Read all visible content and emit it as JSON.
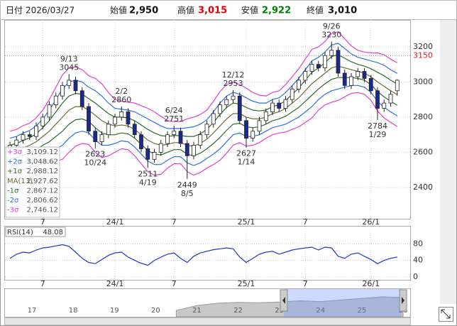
{
  "chart_data": {
    "type": "candlestick",
    "header": {
      "date_label": "日付",
      "date": "2026/03/27",
      "open_label": "始値",
      "open": "2,950",
      "high_label": "高値",
      "high": "3,015",
      "low_label": "安値",
      "low": "2,922",
      "close_label": "終値",
      "close": "3,010"
    },
    "categories": [
      null,
      null,
      null,
      null,
      null,
      "7",
      null,
      null,
      null,
      null,
      null,
      null,
      null,
      null,
      null,
      null,
      "24/1",
      null,
      null,
      null,
      null,
      null,
      null,
      null,
      null,
      "7",
      null,
      null,
      null,
      null,
      null,
      null,
      null,
      null,
      null,
      null,
      "25/1",
      null,
      null,
      null,
      null,
      null,
      null,
      null,
      null,
      "7",
      null,
      null,
      null,
      null,
      null,
      null,
      null,
      null,
      null,
      "26/1",
      null,
      null,
      null,
      null
    ],
    "ylim": [
      2222,
      3353
    ],
    "yticks": [
      2400,
      2600,
      2800,
      3000,
      3200
    ],
    "grid": true,
    "reference_line": {
      "value": 3150,
      "color": "#e02020"
    },
    "up_color": "#ffffff",
    "down_color": "#1a2a8a",
    "open": [
      2620,
      2640,
      2670,
      2700,
      2690,
      2750,
      2800,
      2870,
      2920,
      2980,
      3010,
      2950,
      2860,
      2720,
      2660,
      2700,
      2760,
      2800,
      2830,
      2760,
      2700,
      2620,
      2560,
      2600,
      2650,
      2700,
      2720,
      2650,
      2580,
      2640,
      2700,
      2760,
      2820,
      2870,
      2900,
      2920,
      2780,
      2680,
      2720,
      2780,
      2830,
      2880,
      2850,
      2900,
      2960,
      3010,
      3060,
      3100,
      3080,
      3150,
      3180,
      3050,
      2980,
      3030,
      3060,
      3020,
      2950,
      2850,
      2880,
      2950
    ],
    "high": [
      2660,
      2690,
      2720,
      2720,
      2770,
      2820,
      2890,
      2940,
      3000,
      3045,
      3030,
      2970,
      2880,
      2740,
      2720,
      2780,
      2820,
      2860,
      2850,
      2780,
      2720,
      2640,
      2620,
      2670,
      2720,
      2751,
      2740,
      2670,
      2660,
      2720,
      2780,
      2840,
      2890,
      2920,
      2953,
      2940,
      2800,
      2740,
      2800,
      2850,
      2900,
      2900,
      2920,
      2980,
      3030,
      3080,
      3120,
      3120,
      3170,
      3230,
      3200,
      3070,
      3050,
      3080,
      3080,
      3040,
      2970,
      2900,
      2950,
      3015
    ],
    "low": [
      2600,
      2620,
      2650,
      2670,
      2670,
      2730,
      2780,
      2850,
      2900,
      2960,
      2930,
      2840,
      2700,
      2623,
      2640,
      2680,
      2740,
      2780,
      2740,
      2680,
      2600,
      2511,
      2540,
      2580,
      2630,
      2680,
      2630,
      2449,
      2560,
      2620,
      2680,
      2740,
      2800,
      2850,
      2880,
      2760,
      2627,
      2660,
      2700,
      2760,
      2810,
      2830,
      2830,
      2880,
      2940,
      2990,
      3040,
      3060,
      3060,
      3130,
      3030,
      2960,
      2960,
      3010,
      3000,
      2930,
      2784,
      2830,
      2860,
      2922
    ],
    "close": [
      2640,
      2670,
      2700,
      2690,
      2750,
      2800,
      2870,
      2920,
      2980,
      3010,
      2950,
      2860,
      2720,
      2660,
      2700,
      2760,
      2800,
      2830,
      2760,
      2700,
      2620,
      2560,
      2600,
      2650,
      2700,
      2720,
      2650,
      2580,
      2640,
      2700,
      2760,
      2820,
      2870,
      2900,
      2920,
      2780,
      2680,
      2720,
      2780,
      2830,
      2880,
      2850,
      2900,
      2960,
      3010,
      3060,
      3100,
      3080,
      3150,
      3180,
      3050,
      2980,
      3030,
      3060,
      3020,
      2950,
      2850,
      2880,
      2930,
      3010
    ],
    "bands": [
      {
        "name": "+3σ",
        "color": "#e040d0",
        "legend_value": {
          "value": 3109.12,
          "label": "3,109.12"
        },
        "values": [
          2720,
          2730,
          2751,
          2766,
          2795,
          2840,
          2900,
          2970,
          3040,
          3080,
          3085,
          3070,
          3035,
          3020,
          2990,
          2940,
          2900,
          2890,
          2885,
          2880,
          2865,
          2850,
          2830,
          2805,
          2780,
          2775,
          2775,
          2790,
          2800,
          2815,
          2840,
          2890,
          2945,
          2985,
          3000,
          2985,
          2965,
          2940,
          2925,
          2920,
          2940,
          2950,
          2985,
          3030,
          3075,
          3130,
          3185,
          3200,
          3230,
          3275,
          3285,
          3245,
          3205,
          3180,
          3170,
          3165,
          3165,
          3155,
          3130,
          3109.12
        ]
      },
      {
        "name": "+2σ",
        "color": "#2f6fe0",
        "legend_value": {
          "value": 3048.62,
          "label": "3,048.62"
        },
        "values": [
          2680,
          2690,
          2709,
          2724,
          2750,
          2790,
          2840,
          2900,
          2960,
          3000,
          3010,
          3000,
          2970,
          2950,
          2920,
          2880,
          2850,
          2845,
          2840,
          2830,
          2810,
          2790,
          2770,
          2750,
          2735,
          2735,
          2735,
          2740,
          2745,
          2760,
          2785,
          2830,
          2880,
          2920,
          2940,
          2930,
          2910,
          2890,
          2880,
          2880,
          2900,
          2910,
          2940,
          2980,
          3020,
          3070,
          3120,
          3140,
          3170,
          3210,
          3220,
          3190,
          3160,
          3140,
          3130,
          3120,
          3110,
          3095,
          3070,
          3048.62
        ]
      },
      {
        "name": "+1σ",
        "color": "#2d6a2d",
        "legend_value": {
          "value": 2988.12,
          "label": "2,988.12"
        },
        "values": [
          2640,
          2650,
          2667,
          2682,
          2705,
          2740,
          2780,
          2830,
          2880,
          2920,
          2935,
          2930,
          2905,
          2880,
          2850,
          2820,
          2800,
          2800,
          2795,
          2780,
          2755,
          2730,
          2710,
          2695,
          2690,
          2695,
          2695,
          2690,
          2690,
          2705,
          2730,
          2770,
          2815,
          2855,
          2880,
          2875,
          2855,
          2840,
          2835,
          2840,
          2860,
          2870,
          2895,
          2930,
          2965,
          3010,
          3055,
          3080,
          3110,
          3145,
          3155,
          3135,
          3115,
          3100,
          3090,
          3075,
          3055,
          3035,
          3010,
          2988.12
        ]
      },
      {
        "name": "MA(13)",
        "color": "#6b6b3a",
        "legend_value": {
          "value": 2927.62,
          "label": "2,927.62"
        },
        "values": [
          2600,
          2610,
          2625,
          2640,
          2660,
          2690,
          2720,
          2760,
          2800,
          2840,
          2860,
          2860,
          2840,
          2810,
          2780,
          2760,
          2750,
          2755,
          2750,
          2730,
          2700,
          2670,
          2650,
          2640,
          2645,
          2655,
          2655,
          2640,
          2635,
          2650,
          2675,
          2710,
          2750,
          2790,
          2820,
          2820,
          2800,
          2790,
          2790,
          2800,
          2820,
          2830,
          2850,
          2880,
          2910,
          2950,
          2990,
          3020,
          3050,
          3080,
          3090,
          3080,
          3070,
          3060,
          3050,
          3030,
          3000,
          2975,
          2950,
          2927.62
        ]
      },
      {
        "name": "-1σ",
        "color": "#2d6a2d",
        "legend_value": {
          "value": 2867.12,
          "label": "2,867.12"
        },
        "values": [
          2560,
          2570,
          2583,
          2598,
          2615,
          2640,
          2660,
          2690,
          2720,
          2760,
          2785,
          2790,
          2775,
          2740,
          2710,
          2700,
          2700,
          2710,
          2705,
          2680,
          2645,
          2610,
          2590,
          2585,
          2600,
          2615,
          2615,
          2590,
          2580,
          2595,
          2620,
          2650,
          2685,
          2725,
          2760,
          2765,
          2745,
          2740,
          2745,
          2760,
          2780,
          2790,
          2805,
          2830,
          2855,
          2890,
          2925,
          2960,
          2990,
          3015,
          3025,
          3025,
          3025,
          3020,
          3010,
          2985,
          2945,
          2915,
          2890,
          2867.12
        ]
      },
      {
        "name": "-2σ",
        "color": "#2f6fe0",
        "legend_value": {
          "value": 2806.62,
          "label": "2,806.62"
        },
        "values": [
          2520,
          2530,
          2541,
          2556,
          2570,
          2590,
          2600,
          2620,
          2640,
          2680,
          2710,
          2720,
          2710,
          2670,
          2640,
          2640,
          2650,
          2665,
          2660,
          2630,
          2590,
          2550,
          2530,
          2530,
          2555,
          2575,
          2575,
          2540,
          2525,
          2540,
          2565,
          2590,
          2620,
          2660,
          2700,
          2710,
          2690,
          2690,
          2700,
          2720,
          2740,
          2750,
          2760,
          2780,
          2800,
          2830,
          2860,
          2900,
          2930,
          2950,
          2960,
          2970,
          2980,
          2980,
          2970,
          2940,
          2890,
          2855,
          2830,
          2806.62
        ]
      },
      {
        "name": "-3σ",
        "color": "#e040d0",
        "legend_value": {
          "value": 2746.12,
          "label": "2,746.12"
        },
        "values": [
          2480,
          2490,
          2499,
          2514,
          2525,
          2540,
          2540,
          2550,
          2560,
          2600,
          2635,
          2650,
          2645,
          2600,
          2570,
          2580,
          2600,
          2620,
          2615,
          2580,
          2535,
          2490,
          2470,
          2475,
          2510,
          2535,
          2535,
          2490,
          2470,
          2485,
          2510,
          2530,
          2555,
          2595,
          2640,
          2655,
          2635,
          2640,
          2655,
          2680,
          2700,
          2710,
          2715,
          2730,
          2745,
          2770,
          2795,
          2840,
          2870,
          2885,
          2895,
          2915,
          2935,
          2940,
          2930,
          2895,
          2835,
          2795,
          2770,
          2746.12
        ]
      }
    ],
    "annotations": [
      {
        "date": "9/13",
        "value": 3045
      },
      {
        "date": "10/24",
        "value": 2623
      },
      {
        "date": "2/2",
        "value": 2860
      },
      {
        "date": "4/19",
        "value": 2511
      },
      {
        "date": "6/24",
        "value": 2751
      },
      {
        "date": "8/5",
        "value": 2449
      },
      {
        "date": "12/12",
        "value": 2953
      },
      {
        "date": "1/14",
        "value": 2627
      },
      {
        "date": "9/26",
        "value": 3230
      },
      {
        "date": "1/29",
        "value": 2784
      }
    ],
    "rsi": {
      "name": "RSI(14)",
      "color": "#2233cc",
      "ylim": [
        -7,
        120
      ],
      "yticks": [
        0,
        40,
        80
      ],
      "values": [
        45,
        55,
        60,
        58,
        65,
        70,
        72,
        75,
        78,
        74,
        60,
        45,
        35,
        32,
        42,
        52,
        58,
        60,
        48,
        40,
        33,
        28,
        40,
        48,
        55,
        58,
        45,
        35,
        50,
        58,
        62,
        66,
        68,
        70,
        68,
        48,
        35,
        45,
        55,
        60,
        62,
        55,
        60,
        65,
        68,
        70,
        72,
        65,
        72,
        70,
        50,
        45,
        55,
        58,
        50,
        42,
        32,
        40,
        45,
        48.08
      ]
    },
    "navigator": {
      "categories": [
        "17",
        null,
        "18",
        null,
        "19",
        null,
        "20",
        null,
        "21",
        null,
        "22",
        null,
        "23",
        null,
        "24",
        null,
        "25",
        null,
        "26"
      ],
      "values": [
        null,
        null,
        null,
        null,
        null,
        null,
        null,
        2200,
        2500,
        2650,
        2700,
        2680,
        2720,
        2800,
        2750,
        2850,
        2950,
        3050,
        3000
      ],
      "ylim": [
        1800,
        3400
      ]
    }
  }
}
